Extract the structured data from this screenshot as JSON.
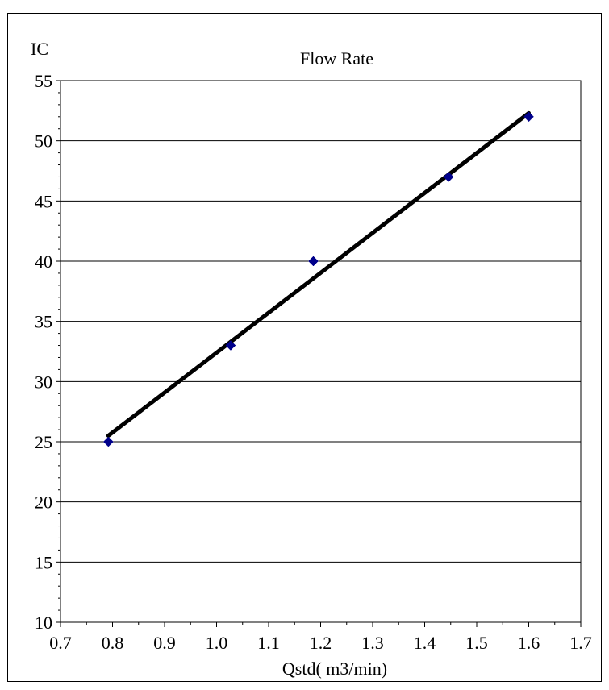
{
  "chart_data": {
    "type": "scatter",
    "title": "Flow Rate",
    "xlabel": "Qstd( m3/min)",
    "ylabel": "IC",
    "xlim": [
      0.7,
      1.7
    ],
    "ylim": [
      10,
      55
    ],
    "x_ticks": [
      "0.7",
      "0.8",
      "0.9",
      "1.0",
      "1.1",
      "1.2",
      "1.3",
      "1.4",
      "1.5",
      "1.6",
      "1.7"
    ],
    "y_ticks": [
      "10",
      "15",
      "20",
      "25",
      "30",
      "35",
      "40",
      "45",
      "50",
      "55"
    ],
    "grid": "horizontal",
    "series": [
      {
        "marker": "diamond",
        "color": "#00008B",
        "points": [
          {
            "x": 0.792,
            "y": 25
          },
          {
            "x": 1.027,
            "y": 33
          },
          {
            "x": 1.186,
            "y": 40
          },
          {
            "x": 1.446,
            "y": 47
          },
          {
            "x": 1.6,
            "y": 52
          }
        ]
      }
    ],
    "trendline": {
      "color": "#000000",
      "from": {
        "x": 0.792,
        "y": 25.5
      },
      "to": {
        "x": 1.6,
        "y": 52.3
      }
    }
  }
}
